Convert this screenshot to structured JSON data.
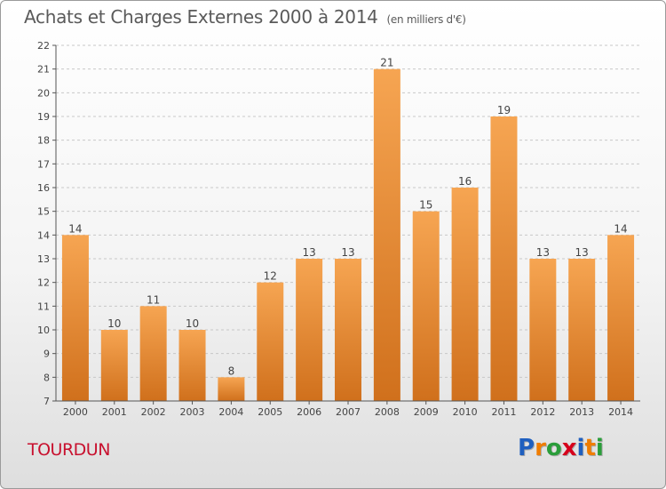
{
  "header": {
    "title": "Achats et Charges Externes 2000 à 2014",
    "unit": "(en milliers d'€)"
  },
  "footer": {
    "commune": "TOURDUN",
    "logo_letters": [
      "P",
      "r",
      "o",
      "x",
      "i",
      "t",
      "i"
    ],
    "logo_colors": [
      "#1f5fbf",
      "#f07d00",
      "#2a9d3a",
      "#d6001c",
      "#1f5fbf",
      "#f07d00",
      "#2a9d3a"
    ]
  },
  "chart_data": {
    "type": "bar",
    "title": "Achats et Charges Externes 2000 à 2014",
    "subtitle": "(en milliers d'€)",
    "categories": [
      "2000",
      "2001",
      "2002",
      "2003",
      "2004",
      "2005",
      "2006",
      "2007",
      "2008",
      "2009",
      "2010",
      "2011",
      "2012",
      "2013",
      "2014"
    ],
    "values": [
      14,
      10,
      11,
      10,
      8,
      12,
      13,
      13,
      21,
      15,
      16,
      19,
      13,
      13,
      14
    ],
    "ylim": [
      7,
      22
    ],
    "yticks": [
      7,
      8,
      9,
      10,
      11,
      12,
      13,
      14,
      15,
      16,
      17,
      18,
      19,
      20,
      21,
      22
    ],
    "grid": true,
    "bar_color_top": "#f6a552",
    "bar_color_bottom": "#d0701c"
  }
}
